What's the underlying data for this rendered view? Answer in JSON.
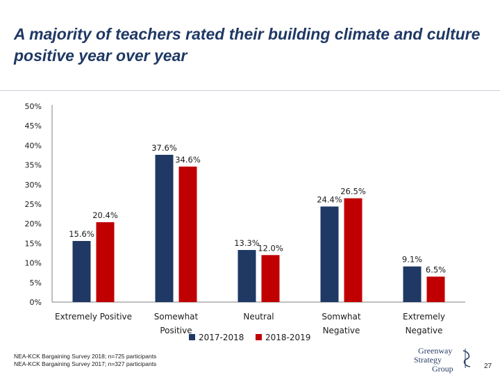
{
  "slide": {
    "title": "A majority of teachers rated their building climate and culture positive year over year",
    "source_lines": [
      "NEA-KCK Bargaining Survey 2018; n=725 participants",
      "NEA-KCK Bargaining Survey 2017; n=327 participants"
    ],
    "logo_lines": [
      "Greenway",
      "Strategy",
      "Group"
    ],
    "page_number": "27"
  },
  "colors": {
    "series_2017_2018": "#1f3864",
    "series_2018_2019": "#c00000",
    "title": "#1f3864"
  },
  "chart_data": {
    "type": "bar",
    "title": "",
    "xlabel": "",
    "ylabel": "",
    "ylim": [
      0,
      50
    ],
    "yticks": [
      "0%",
      "5%",
      "10%",
      "15%",
      "20%",
      "25%",
      "30%",
      "35%",
      "40%",
      "45%",
      "50%"
    ],
    "categories": [
      [
        "Extremely Positive"
      ],
      [
        "Somewhat",
        "Positive"
      ],
      [
        "Neutral"
      ],
      [
        "Somwhat",
        "Negative"
      ],
      [
        "Extremely",
        "Negative"
      ]
    ],
    "series": [
      {
        "name": "2017-2018",
        "values": [
          15.6,
          37.6,
          13.3,
          24.4,
          9.1
        ],
        "labels": [
          "15.6%",
          "37.6%",
          "13.3%",
          "24.4%",
          "9.1%"
        ]
      },
      {
        "name": "2018-2019",
        "values": [
          20.4,
          34.6,
          12.0,
          26.5,
          6.5
        ],
        "labels": [
          "20.4%",
          "34.6%",
          "12.0%",
          "26.5%",
          "6.5%"
        ]
      }
    ],
    "legend_position": "bottom",
    "grid": false
  }
}
